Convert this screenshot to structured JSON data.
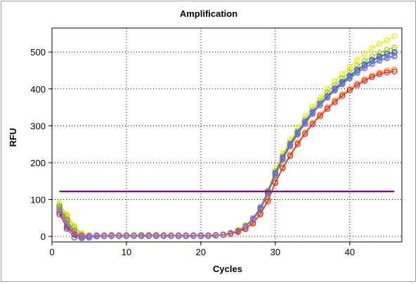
{
  "chart_data": {
    "type": "line",
    "title": "Amplification",
    "xlabel": "Cycles",
    "ylabel": "RFU",
    "xlim": [
      0,
      47
    ],
    "ylim": [
      -15,
      565
    ],
    "xticks": [
      0,
      10,
      20,
      30,
      40
    ],
    "yticks": [
      0,
      100,
      200,
      300,
      400,
      500
    ],
    "grid": true,
    "threshold": 122,
    "threshold_color": "#7a1a78",
    "x": [
      1,
      2,
      3,
      4,
      5,
      6,
      7,
      8,
      9,
      10,
      11,
      12,
      13,
      14,
      15,
      16,
      17,
      18,
      19,
      20,
      21,
      22,
      23,
      24,
      25,
      26,
      27,
      28,
      29,
      30,
      31,
      32,
      33,
      34,
      35,
      36,
      37,
      38,
      39,
      40,
      41,
      42,
      43,
      44,
      45,
      46
    ],
    "series": [
      {
        "color": "#e8e800",
        "values": [
          90,
          60,
          30,
          8,
          3,
          2,
          3,
          2,
          3,
          4,
          3,
          3,
          4,
          3,
          3,
          3,
          2,
          3,
          3,
          2,
          3,
          4,
          6,
          10,
          18,
          30,
          50,
          80,
          125,
          180,
          225,
          262,
          295,
          325,
          352,
          375,
          400,
          420,
          440,
          460,
          478,
          495,
          510,
          522,
          532,
          543
        ]
      },
      {
        "color": "#9ad400",
        "values": [
          85,
          55,
          25,
          5,
          2,
          3,
          2,
          4,
          3,
          3,
          3,
          4,
          3,
          4,
          3,
          3,
          3,
          2,
          3,
          3,
          3,
          4,
          5,
          9,
          16,
          28,
          46,
          76,
          120,
          175,
          218,
          254,
          286,
          316,
          343,
          367,
          390,
          410,
          428,
          445,
          462,
          476,
          488,
          498,
          506,
          512
        ]
      },
      {
        "color": "#33a02c",
        "values": [
          80,
          45,
          15,
          2,
          1,
          2,
          2,
          3,
          2,
          3,
          2,
          2,
          3,
          2,
          3,
          2,
          2,
          2,
          3,
          3,
          2,
          3,
          4,
          8,
          14,
          26,
          44,
          72,
          115,
          165,
          208,
          244,
          276,
          305,
          332,
          356,
          378,
          398,
          416,
          433,
          449,
          463,
          476,
          486,
          494,
          500
        ]
      },
      {
        "color": "#1f8fff",
        "values": [
          70,
          30,
          5,
          -2,
          0,
          2,
          1,
          2,
          1,
          2,
          2,
          1,
          2,
          1,
          2,
          2,
          1,
          1,
          2,
          2,
          2,
          3,
          4,
          8,
          14,
          26,
          45,
          74,
          118,
          170,
          212,
          248,
          280,
          308,
          334,
          356,
          377,
          396,
          414,
          430,
          445,
          458,
          469,
          478,
          485,
          490
        ]
      },
      {
        "color": "#4055c8",
        "values": [
          65,
          20,
          -3,
          -5,
          -3,
          0,
          1,
          1,
          1,
          1,
          1,
          1,
          1,
          1,
          1,
          1,
          1,
          1,
          1,
          1,
          1,
          2,
          4,
          8,
          15,
          28,
          48,
          78,
          122,
          172,
          214,
          250,
          282,
          311,
          337,
          360,
          381,
          401,
          419,
          436,
          452,
          466,
          478,
          488,
          495,
          498
        ]
      },
      {
        "color": "#ff7f1a",
        "values": [
          75,
          40,
          12,
          3,
          2,
          2,
          3,
          3,
          3,
          3,
          3,
          3,
          3,
          3,
          3,
          3,
          3,
          3,
          3,
          3,
          3,
          4,
          5,
          8,
          13,
          22,
          38,
          62,
          100,
          148,
          188,
          222,
          254,
          282,
          308,
          330,
          350,
          368,
          385,
          400,
          414,
          426,
          436,
          444,
          450,
          452
        ]
      },
      {
        "color": "#e31a1c",
        "values": [
          60,
          25,
          5,
          0,
          1,
          2,
          2,
          2,
          2,
          2,
          2,
          2,
          2,
          2,
          2,
          2,
          2,
          2,
          2,
          2,
          2,
          3,
          4,
          7,
          12,
          20,
          35,
          60,
          95,
          145,
          185,
          218,
          250,
          278,
          304,
          326,
          346,
          364,
          381,
          396,
          410,
          422,
          432,
          440,
          445,
          447
        ]
      },
      {
        "color": "#9370db",
        "values": [
          72,
          35,
          8,
          1,
          1,
          2,
          2,
          2,
          2,
          2,
          2,
          2,
          2,
          2,
          2,
          2,
          2,
          2,
          2,
          2,
          2,
          3,
          5,
          9,
          15,
          27,
          46,
          75,
          119,
          168,
          210,
          246,
          278,
          306,
          332,
          355,
          376,
          395,
          412,
          428,
          443,
          456,
          467,
          476,
          483,
          488
        ]
      }
    ]
  }
}
